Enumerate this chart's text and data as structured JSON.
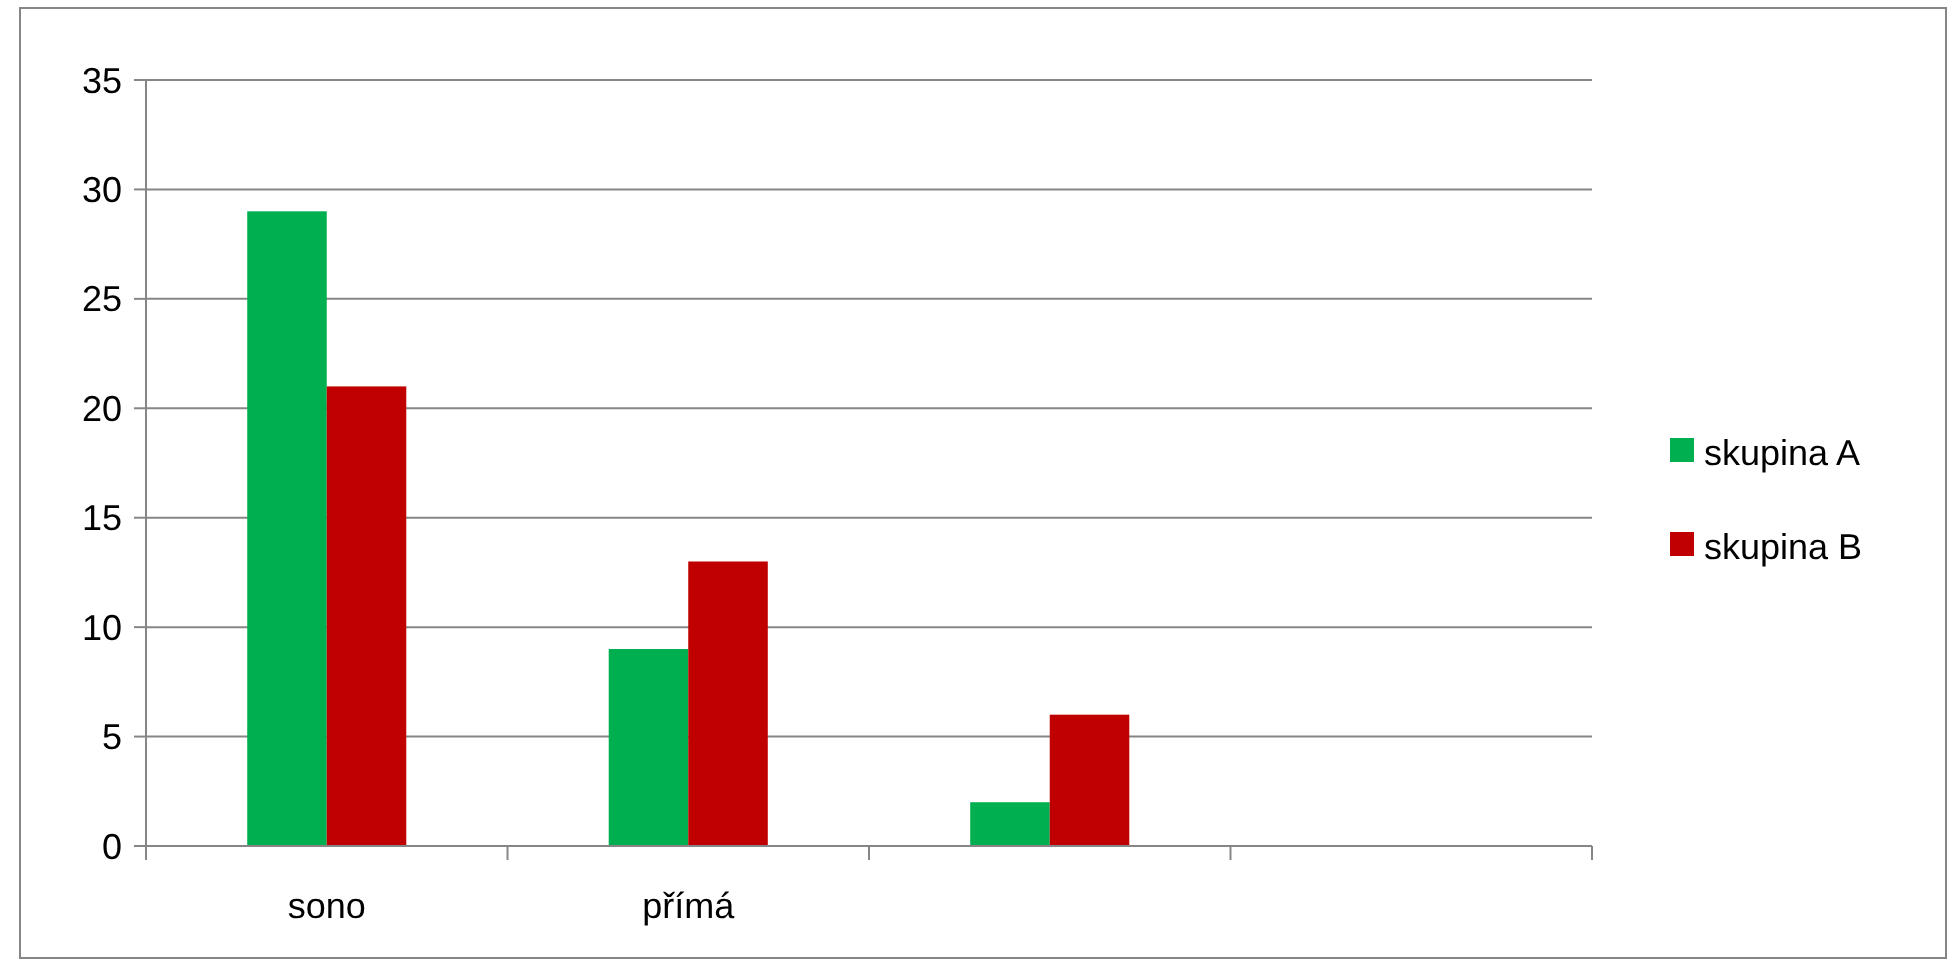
{
  "chart_data": {
    "type": "bar",
    "categories": [
      "sono",
      "přímá",
      null,
      null
    ],
    "series": [
      {
        "name": "skupina A",
        "color": "#00b050",
        "values": [
          29,
          9,
          2,
          null
        ]
      },
      {
        "name": "skupina B",
        "color": "#c00000",
        "values": [
          21,
          13,
          6,
          null
        ]
      }
    ],
    "ylim": [
      0,
      35
    ],
    "yticks": [
      0,
      5,
      10,
      15,
      20,
      25,
      30,
      35
    ],
    "grid": "y",
    "legend": "right"
  }
}
